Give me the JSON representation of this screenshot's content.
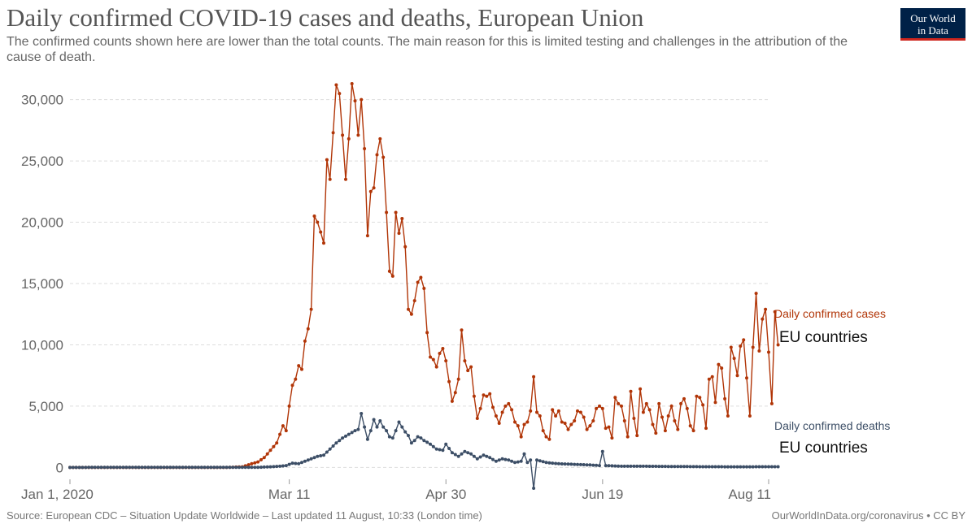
{
  "header": {
    "title": "Daily confirmed COVID-19 cases and deaths, European Union",
    "subtitle": "The confirmed counts shown here are lower than the total counts. The main reason for this is limited testing and challenges in the attribution of the cause of death.",
    "logo_line1": "Our World",
    "logo_line2": "in Data"
  },
  "footer": {
    "source": "Source: European CDC – Situation Update Worldwide – Last updated 11 August, 10:33 (London time)",
    "credit": "OurWorldInData.org/coronavirus • CC BY"
  },
  "annotations": {
    "cases_note": "EU countries",
    "deaths_note": "EU countries"
  },
  "chart_data": {
    "type": "line",
    "x_start": "2020-01-01",
    "x_end": "2020-08-11",
    "xticks": [
      {
        "date": "2020-01-01",
        "label": "Jan 1, 2020"
      },
      {
        "date": "2020-03-11",
        "label": "Mar 11"
      },
      {
        "date": "2020-04-30",
        "label": "Apr 30"
      },
      {
        "date": "2020-06-19",
        "label": "Jun 19"
      },
      {
        "date": "2020-08-11",
        "label": "Aug 11"
      }
    ],
    "yticks": [
      0,
      5000,
      10000,
      15000,
      20000,
      25000,
      30000
    ],
    "ytick_labels": [
      "0",
      "5,000",
      "10,000",
      "15,000",
      "20,000",
      "25,000",
      "30,000"
    ],
    "ylim": [
      -1500,
      31500
    ],
    "grid": true,
    "series": [
      {
        "name": "Daily confirmed cases",
        "color": "#b13507",
        "points": [
          [
            "2020-01-01",
            0
          ],
          [
            "2020-02-20",
            0
          ],
          [
            "2020-02-25",
            50
          ],
          [
            "2020-02-28",
            300
          ],
          [
            "2020-03-01",
            450
          ],
          [
            "2020-03-03",
            800
          ],
          [
            "2020-03-05",
            1400
          ],
          [
            "2020-03-07",
            2000
          ],
          [
            "2020-03-09",
            3400
          ],
          [
            "2020-03-10",
            3000
          ],
          [
            "2020-03-11",
            5000
          ],
          [
            "2020-03-12",
            6700
          ],
          [
            "2020-03-13",
            7200
          ],
          [
            "2020-03-14",
            8300
          ],
          [
            "2020-03-15",
            8000
          ],
          [
            "2020-03-16",
            10300
          ],
          [
            "2020-03-17",
            11300
          ],
          [
            "2020-03-18",
            12900
          ],
          [
            "2020-03-19",
            20500
          ],
          [
            "2020-03-20",
            20000
          ],
          [
            "2020-03-21",
            19200
          ],
          [
            "2020-03-22",
            18300
          ],
          [
            "2020-03-23",
            25100
          ],
          [
            "2020-03-24",
            23500
          ],
          [
            "2020-03-25",
            27300
          ],
          [
            "2020-03-26",
            31200
          ],
          [
            "2020-03-27",
            30500
          ],
          [
            "2020-03-28",
            27100
          ],
          [
            "2020-03-29",
            23500
          ],
          [
            "2020-03-30",
            26800
          ],
          [
            "2020-03-31",
            31300
          ],
          [
            "2020-04-01",
            29900
          ],
          [
            "2020-04-02",
            27100
          ],
          [
            "2020-04-03",
            30000
          ],
          [
            "2020-04-04",
            26000
          ],
          [
            "2020-04-05",
            18900
          ],
          [
            "2020-04-06",
            22500
          ],
          [
            "2020-04-07",
            22800
          ],
          [
            "2020-04-08",
            25500
          ],
          [
            "2020-04-09",
            26800
          ],
          [
            "2020-04-10",
            25300
          ],
          [
            "2020-04-11",
            20800
          ],
          [
            "2020-04-12",
            16000
          ],
          [
            "2020-04-13",
            15600
          ],
          [
            "2020-04-14",
            20800
          ],
          [
            "2020-04-15",
            19100
          ],
          [
            "2020-04-16",
            20300
          ],
          [
            "2020-04-17",
            18000
          ],
          [
            "2020-04-18",
            12900
          ],
          [
            "2020-04-19",
            12500
          ],
          [
            "2020-04-20",
            13600
          ],
          [
            "2020-04-21",
            15100
          ],
          [
            "2020-04-22",
            15500
          ],
          [
            "2020-04-23",
            14600
          ],
          [
            "2020-04-24",
            11000
          ],
          [
            "2020-04-25",
            9000
          ],
          [
            "2020-04-26",
            8800
          ],
          [
            "2020-04-27",
            8200
          ],
          [
            "2020-04-28",
            9300
          ],
          [
            "2020-04-29",
            9700
          ],
          [
            "2020-04-30",
            8700
          ],
          [
            "2020-05-01",
            7000
          ],
          [
            "2020-05-02",
            5400
          ],
          [
            "2020-05-03",
            6100
          ],
          [
            "2020-05-04",
            7200
          ],
          [
            "2020-05-05",
            11200
          ],
          [
            "2020-05-06",
            8700
          ],
          [
            "2020-05-07",
            7900
          ],
          [
            "2020-05-08",
            8200
          ],
          [
            "2020-05-09",
            5800
          ],
          [
            "2020-05-10",
            4000
          ],
          [
            "2020-05-11",
            4800
          ],
          [
            "2020-05-12",
            5900
          ],
          [
            "2020-05-13",
            5800
          ],
          [
            "2020-05-14",
            6000
          ],
          [
            "2020-05-15",
            4900
          ],
          [
            "2020-05-16",
            4200
          ],
          [
            "2020-05-17",
            3600
          ],
          [
            "2020-05-18",
            4500
          ],
          [
            "2020-05-19",
            5000
          ],
          [
            "2020-05-20",
            5200
          ],
          [
            "2020-05-21",
            4700
          ],
          [
            "2020-05-22",
            3700
          ],
          [
            "2020-05-23",
            3400
          ],
          [
            "2020-05-24",
            2500
          ],
          [
            "2020-05-25",
            3500
          ],
          [
            "2020-05-26",
            3700
          ],
          [
            "2020-05-27",
            4600
          ],
          [
            "2020-05-28",
            7400
          ],
          [
            "2020-05-29",
            4500
          ],
          [
            "2020-05-30",
            4200
          ],
          [
            "2020-05-31",
            3000
          ],
          [
            "2020-06-01",
            2500
          ],
          [
            "2020-06-02",
            2300
          ],
          [
            "2020-06-03",
            4700
          ],
          [
            "2020-06-04",
            4200
          ],
          [
            "2020-06-05",
            4600
          ],
          [
            "2020-06-06",
            3700
          ],
          [
            "2020-06-07",
            3600
          ],
          [
            "2020-06-08",
            3100
          ],
          [
            "2020-06-09",
            3500
          ],
          [
            "2020-06-10",
            3800
          ],
          [
            "2020-06-11",
            4600
          ],
          [
            "2020-06-12",
            4500
          ],
          [
            "2020-06-13",
            4100
          ],
          [
            "2020-06-14",
            3100
          ],
          [
            "2020-06-15",
            3400
          ],
          [
            "2020-06-16",
            3800
          ],
          [
            "2020-06-17",
            4800
          ],
          [
            "2020-06-18",
            5000
          ],
          [
            "2020-06-19",
            4800
          ],
          [
            "2020-06-20",
            3200
          ],
          [
            "2020-06-21",
            3300
          ],
          [
            "2020-06-22",
            2400
          ],
          [
            "2020-06-23",
            5700
          ],
          [
            "2020-06-24",
            5200
          ],
          [
            "2020-06-25",
            5000
          ],
          [
            "2020-06-26",
            3800
          ],
          [
            "2020-06-27",
            2500
          ],
          [
            "2020-06-28",
            6200
          ],
          [
            "2020-06-29",
            4000
          ],
          [
            "2020-06-30",
            2600
          ],
          [
            "2020-07-01",
            6400
          ],
          [
            "2020-07-02",
            4500
          ],
          [
            "2020-07-03",
            5200
          ],
          [
            "2020-07-04",
            4700
          ],
          [
            "2020-07-05",
            3500
          ],
          [
            "2020-07-06",
            2800
          ],
          [
            "2020-07-07",
            5200
          ],
          [
            "2020-07-08",
            4100
          ],
          [
            "2020-07-09",
            3000
          ],
          [
            "2020-07-10",
            4200
          ],
          [
            "2020-07-11",
            5000
          ],
          [
            "2020-07-12",
            3800
          ],
          [
            "2020-07-13",
            3100
          ],
          [
            "2020-07-14",
            5200
          ],
          [
            "2020-07-15",
            5600
          ],
          [
            "2020-07-16",
            4800
          ],
          [
            "2020-07-17",
            3400
          ],
          [
            "2020-07-18",
            3000
          ],
          [
            "2020-07-19",
            5800
          ],
          [
            "2020-07-20",
            5700
          ],
          [
            "2020-07-21",
            5100
          ],
          [
            "2020-07-22",
            3200
          ],
          [
            "2020-07-23",
            7200
          ],
          [
            "2020-07-24",
            7400
          ],
          [
            "2020-07-25",
            5300
          ],
          [
            "2020-07-26",
            8400
          ],
          [
            "2020-07-27",
            8100
          ],
          [
            "2020-07-28",
            5600
          ],
          [
            "2020-07-29",
            4200
          ],
          [
            "2020-07-30",
            9800
          ],
          [
            "2020-07-31",
            8900
          ],
          [
            "2020-08-01",
            7500
          ],
          [
            "2020-08-02",
            9900
          ],
          [
            "2020-08-03",
            10400
          ],
          [
            "2020-08-04",
            7300
          ],
          [
            "2020-08-05",
            4200
          ],
          [
            "2020-08-06",
            9800
          ],
          [
            "2020-08-07",
            14200
          ],
          [
            "2020-08-08",
            9500
          ],
          [
            "2020-08-09",
            12100
          ],
          [
            "2020-08-10",
            12900
          ],
          [
            "2020-08-11",
            9400
          ],
          [
            "2020-08-12",
            5200
          ],
          [
            "2020-08-13",
            12700
          ],
          [
            "2020-08-14",
            10000
          ]
        ]
      },
      {
        "name": "Daily confirmed deaths",
        "color": "#3c4e66",
        "points": [
          [
            "2020-01-01",
            0
          ],
          [
            "2020-03-01",
            10
          ],
          [
            "2020-03-05",
            50
          ],
          [
            "2020-03-08",
            100
          ],
          [
            "2020-03-10",
            150
          ],
          [
            "2020-03-12",
            350
          ],
          [
            "2020-03-14",
            300
          ],
          [
            "2020-03-16",
            500
          ],
          [
            "2020-03-18",
            700
          ],
          [
            "2020-03-20",
            900
          ],
          [
            "2020-03-22",
            1000
          ],
          [
            "2020-03-24",
            1500
          ],
          [
            "2020-03-26",
            2000
          ],
          [
            "2020-03-28",
            2400
          ],
          [
            "2020-03-30",
            2700
          ],
          [
            "2020-04-01",
            3000
          ],
          [
            "2020-04-02",
            3100
          ],
          [
            "2020-04-03",
            4400
          ],
          [
            "2020-04-04",
            3300
          ],
          [
            "2020-04-05",
            2300
          ],
          [
            "2020-04-06",
            3000
          ],
          [
            "2020-04-07",
            3900
          ],
          [
            "2020-04-08",
            3300
          ],
          [
            "2020-04-09",
            3800
          ],
          [
            "2020-04-10",
            3300
          ],
          [
            "2020-04-11",
            3000
          ],
          [
            "2020-04-12",
            2500
          ],
          [
            "2020-04-13",
            2400
          ],
          [
            "2020-04-14",
            3000
          ],
          [
            "2020-04-15",
            3700
          ],
          [
            "2020-04-16",
            3300
          ],
          [
            "2020-04-17",
            2900
          ],
          [
            "2020-04-18",
            2600
          ],
          [
            "2020-04-19",
            2000
          ],
          [
            "2020-04-20",
            2200
          ],
          [
            "2020-04-21",
            2500
          ],
          [
            "2020-04-22",
            2400
          ],
          [
            "2020-04-23",
            2200
          ],
          [
            "2020-04-25",
            1900
          ],
          [
            "2020-04-27",
            1500
          ],
          [
            "2020-04-29",
            1400
          ],
          [
            "2020-04-30",
            1900
          ],
          [
            "2020-05-02",
            1200
          ],
          [
            "2020-05-04",
            900
          ],
          [
            "2020-05-06",
            1300
          ],
          [
            "2020-05-08",
            1100
          ],
          [
            "2020-05-10",
            700
          ],
          [
            "2020-05-12",
            1000
          ],
          [
            "2020-05-14",
            800
          ],
          [
            "2020-05-16",
            500
          ],
          [
            "2020-05-18",
            700
          ],
          [
            "2020-05-20",
            600
          ],
          [
            "2020-05-22",
            400
          ],
          [
            "2020-05-24",
            500
          ],
          [
            "2020-05-25",
            1100
          ],
          [
            "2020-05-26",
            400
          ],
          [
            "2020-05-27",
            600
          ],
          [
            "2020-05-28",
            -1700
          ],
          [
            "2020-05-29",
            600
          ],
          [
            "2020-06-01",
            400
          ],
          [
            "2020-06-05",
            300
          ],
          [
            "2020-06-10",
            250
          ],
          [
            "2020-06-15",
            200
          ],
          [
            "2020-06-18",
            150
          ],
          [
            "2020-06-19",
            1300
          ],
          [
            "2020-06-20",
            150
          ],
          [
            "2020-06-25",
            100
          ],
          [
            "2020-07-01",
            100
          ],
          [
            "2020-07-10",
            80
          ],
          [
            "2020-07-20",
            60
          ],
          [
            "2020-08-01",
            50
          ],
          [
            "2020-08-14",
            60
          ]
        ]
      }
    ]
  }
}
